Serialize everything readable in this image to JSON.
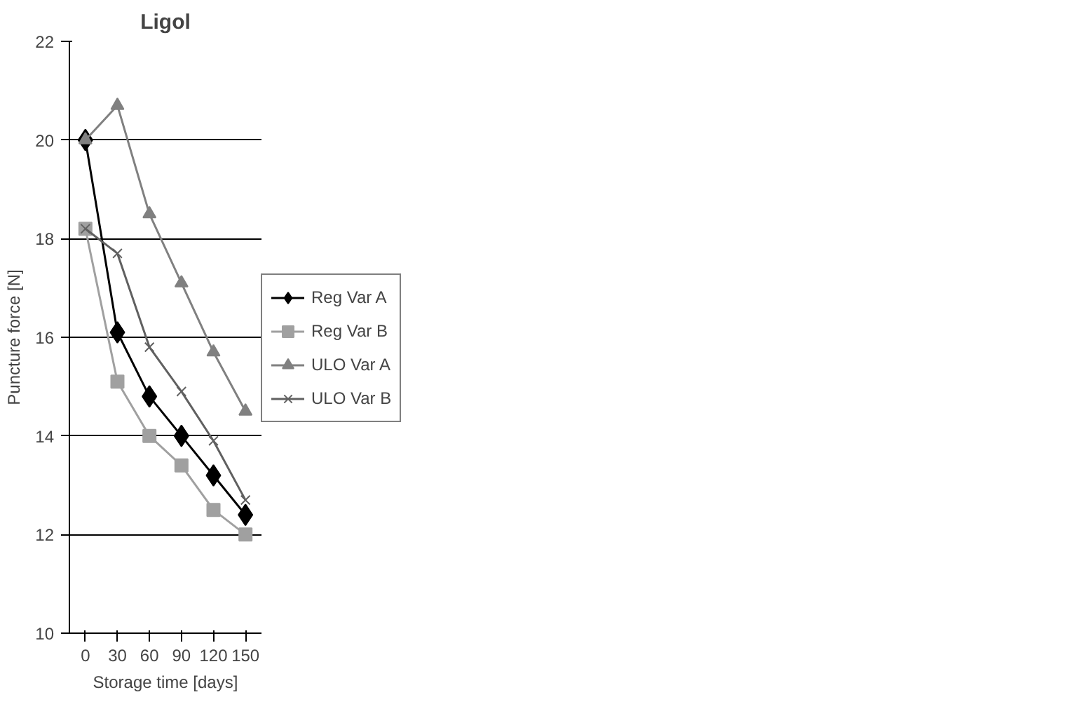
{
  "chart_data": {
    "type": "line",
    "title": "Ligol",
    "xlabel": "Storage time [days]",
    "ylabel": "Puncture force [N]",
    "categories": [
      "0",
      "30",
      "60",
      "90",
      "120",
      "150"
    ],
    "series": [
      {
        "name": "Reg Var A",
        "color": "#000000",
        "marker": "diamond",
        "values": [
          20.0,
          16.1,
          14.8,
          14.0,
          13.2,
          12.4
        ]
      },
      {
        "name": "Reg Var B",
        "color": "#a0a0a0",
        "marker": "square",
        "values": [
          18.2,
          15.1,
          14.0,
          13.4,
          12.5,
          12.0
        ]
      },
      {
        "name": "ULO Var A",
        "color": "#808080",
        "marker": "triangle",
        "values": [
          20.0,
          20.7,
          18.5,
          17.1,
          15.7,
          14.5
        ]
      },
      {
        "name": "ULO Var B",
        "color": "#606060",
        "marker": "cross",
        "values": [
          18.2,
          17.7,
          15.8,
          14.9,
          13.9,
          12.7
        ]
      }
    ],
    "ylim": [
      10,
      22
    ],
    "yticks": [
      10,
      12,
      14,
      16,
      18,
      20,
      22
    ],
    "grid": "y",
    "legend": "right"
  }
}
